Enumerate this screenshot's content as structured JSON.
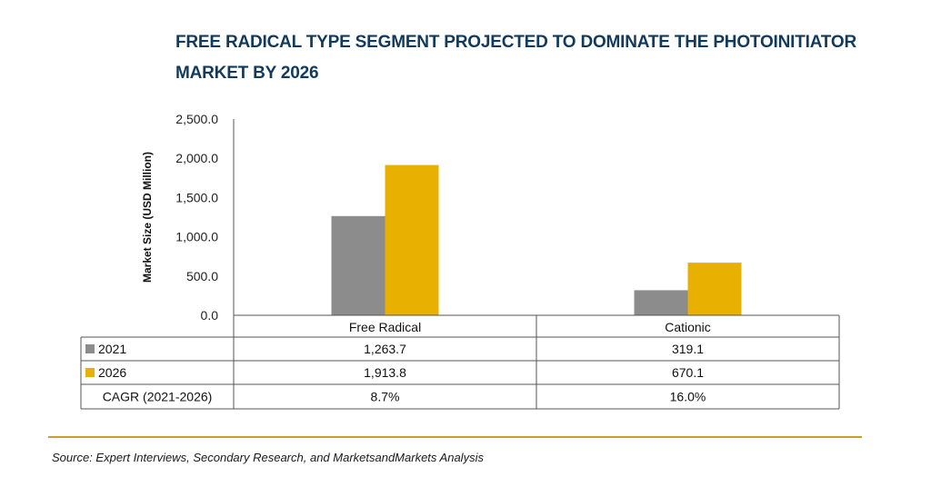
{
  "title": "FREE RADICAL TYPE SEGMENT PROJECTED TO DOMINATE THE PHOTOINITIATOR MARKET BY 2026",
  "source": "Source: Expert Interviews, Secondary Research, and MarketsandMarkets Analysis",
  "colors": {
    "title": "#123a5c",
    "series_2021": "#8c8c8c",
    "series_2026": "#e8b000",
    "divider": "#c8a02a"
  },
  "chart_data": {
    "type": "bar",
    "title": "FREE RADICAL TYPE SEGMENT PROJECTED TO DOMINATE THE PHOTOINITIATOR MARKET BY 2026",
    "ylabel": "Market Size (USD Million)",
    "xlabel": "",
    "ylim": [
      0,
      2500
    ],
    "yticks": [
      "0.0",
      "500.0",
      "1,000.0",
      "1,500.0",
      "2,000.0",
      "2,500.0"
    ],
    "grid": false,
    "categories": [
      "Free Radical",
      "Cationic"
    ],
    "series": [
      {
        "name": "2021",
        "values": [
          1263.7,
          319.1
        ],
        "labels": [
          "1,263.7",
          "319.1"
        ]
      },
      {
        "name": "2026",
        "values": [
          1913.8,
          670.1
        ],
        "labels": [
          "1,913.8",
          "670.1"
        ]
      }
    ],
    "table_rows": [
      {
        "label": "CAGR (2021-2026)",
        "values": [
          "8.7%",
          "16.0%"
        ]
      }
    ]
  }
}
